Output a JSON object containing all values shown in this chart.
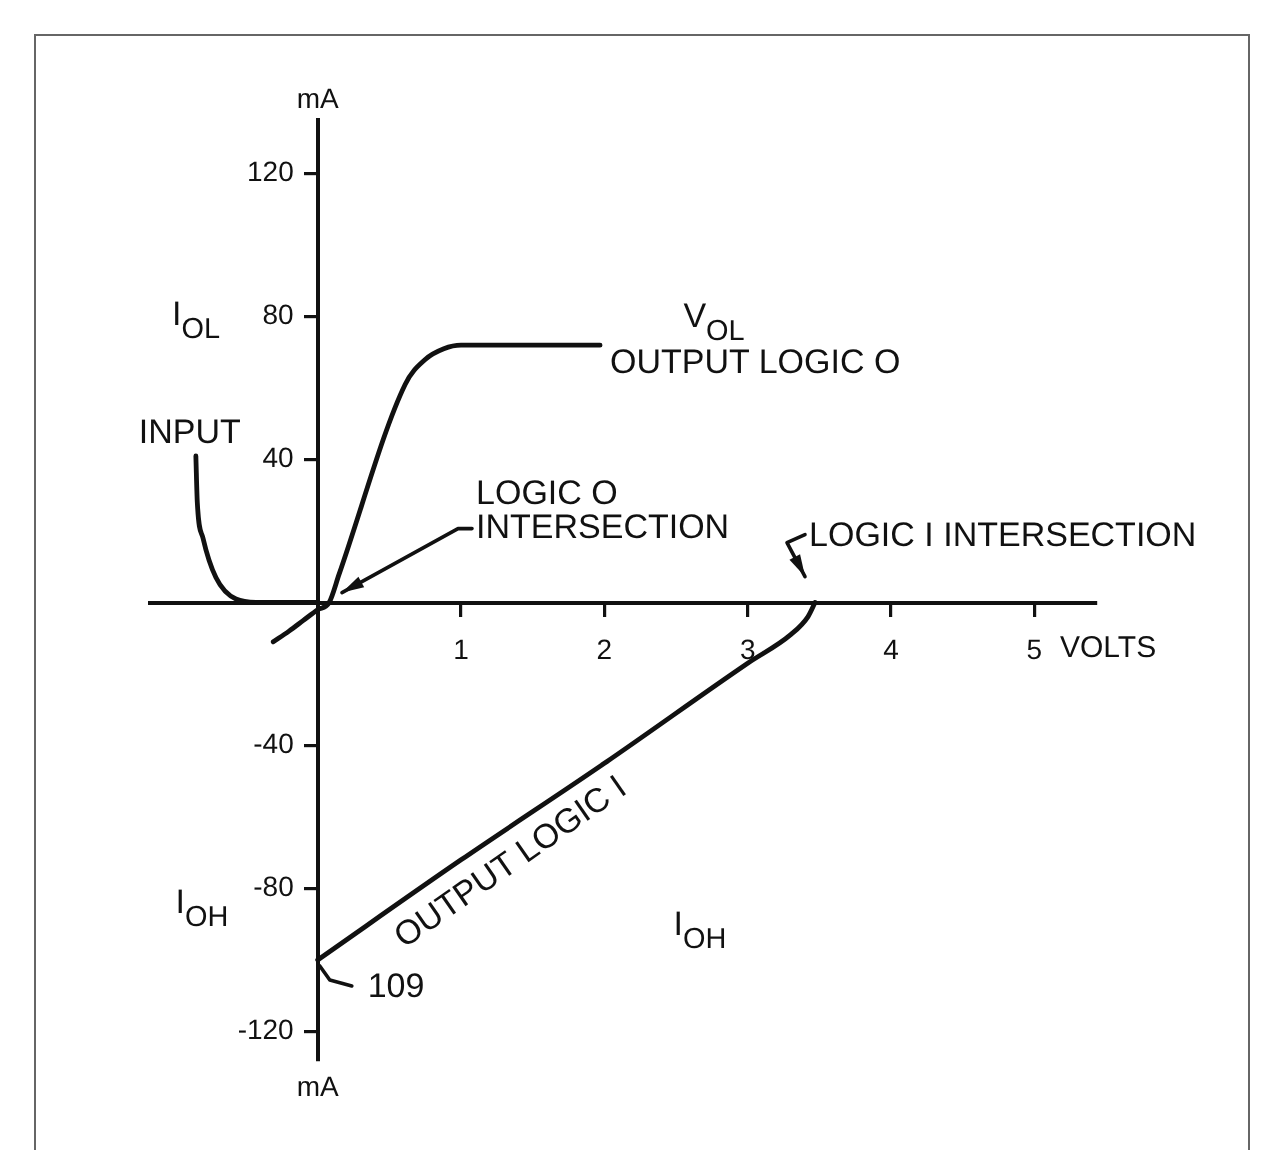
{
  "chart_data": {
    "type": "line",
    "xlabel": "VOLTS",
    "ylabel": "mA",
    "xlim": [
      -1.17,
      5.43
    ],
    "ylim": [
      -128,
      135
    ],
    "xticks": [
      1,
      2,
      3,
      4,
      5
    ],
    "yticks": [
      -120,
      -80,
      -40,
      40,
      80,
      120
    ],
    "series": [
      {
        "name": "INPUT",
        "color": "#111111",
        "x": [
          -0.85,
          -0.84,
          -0.8,
          -0.71,
          -0.57,
          -0.4,
          -0.2,
          0
        ],
        "values": [
          41,
          28,
          18,
          7,
          1,
          0,
          0,
          0
        ]
      },
      {
        "name": "OUTPUT LOGIC O",
        "color": "#111111",
        "x": [
          -0.31,
          -0.2,
          -0.1,
          0,
          0.08,
          0.15,
          0.61,
          0.75,
          0.88,
          1.0,
          1.97
        ],
        "values": [
          -11,
          -8,
          -5,
          -2,
          0,
          8,
          61,
          68,
          71,
          72,
          72
        ]
      },
      {
        "name": "OUTPUT LOGIC I",
        "color": "#111111",
        "x": [
          0,
          1,
          2,
          3,
          3.3,
          3.42,
          3.47
        ],
        "values": [
          -100,
          -72,
          -45,
          -17,
          -9,
          -4,
          0
        ]
      }
    ],
    "marker": "none",
    "legend": false,
    "grid": false,
    "annotations": [
      "I$_{OL}$",
      "I$_{OH}$",
      "V$_{OL}$",
      "I$_{OH}$",
      {
        "text": "LOGIC O\nINTERSECTION",
        "x": 0.1,
        "y": 0
      },
      {
        "text": "LOGIC I INTERSECTION",
        "x": 3.47,
        "y": 0
      },
      {
        "text": "109",
        "x": 0,
        "y": -100
      }
    ]
  }
}
